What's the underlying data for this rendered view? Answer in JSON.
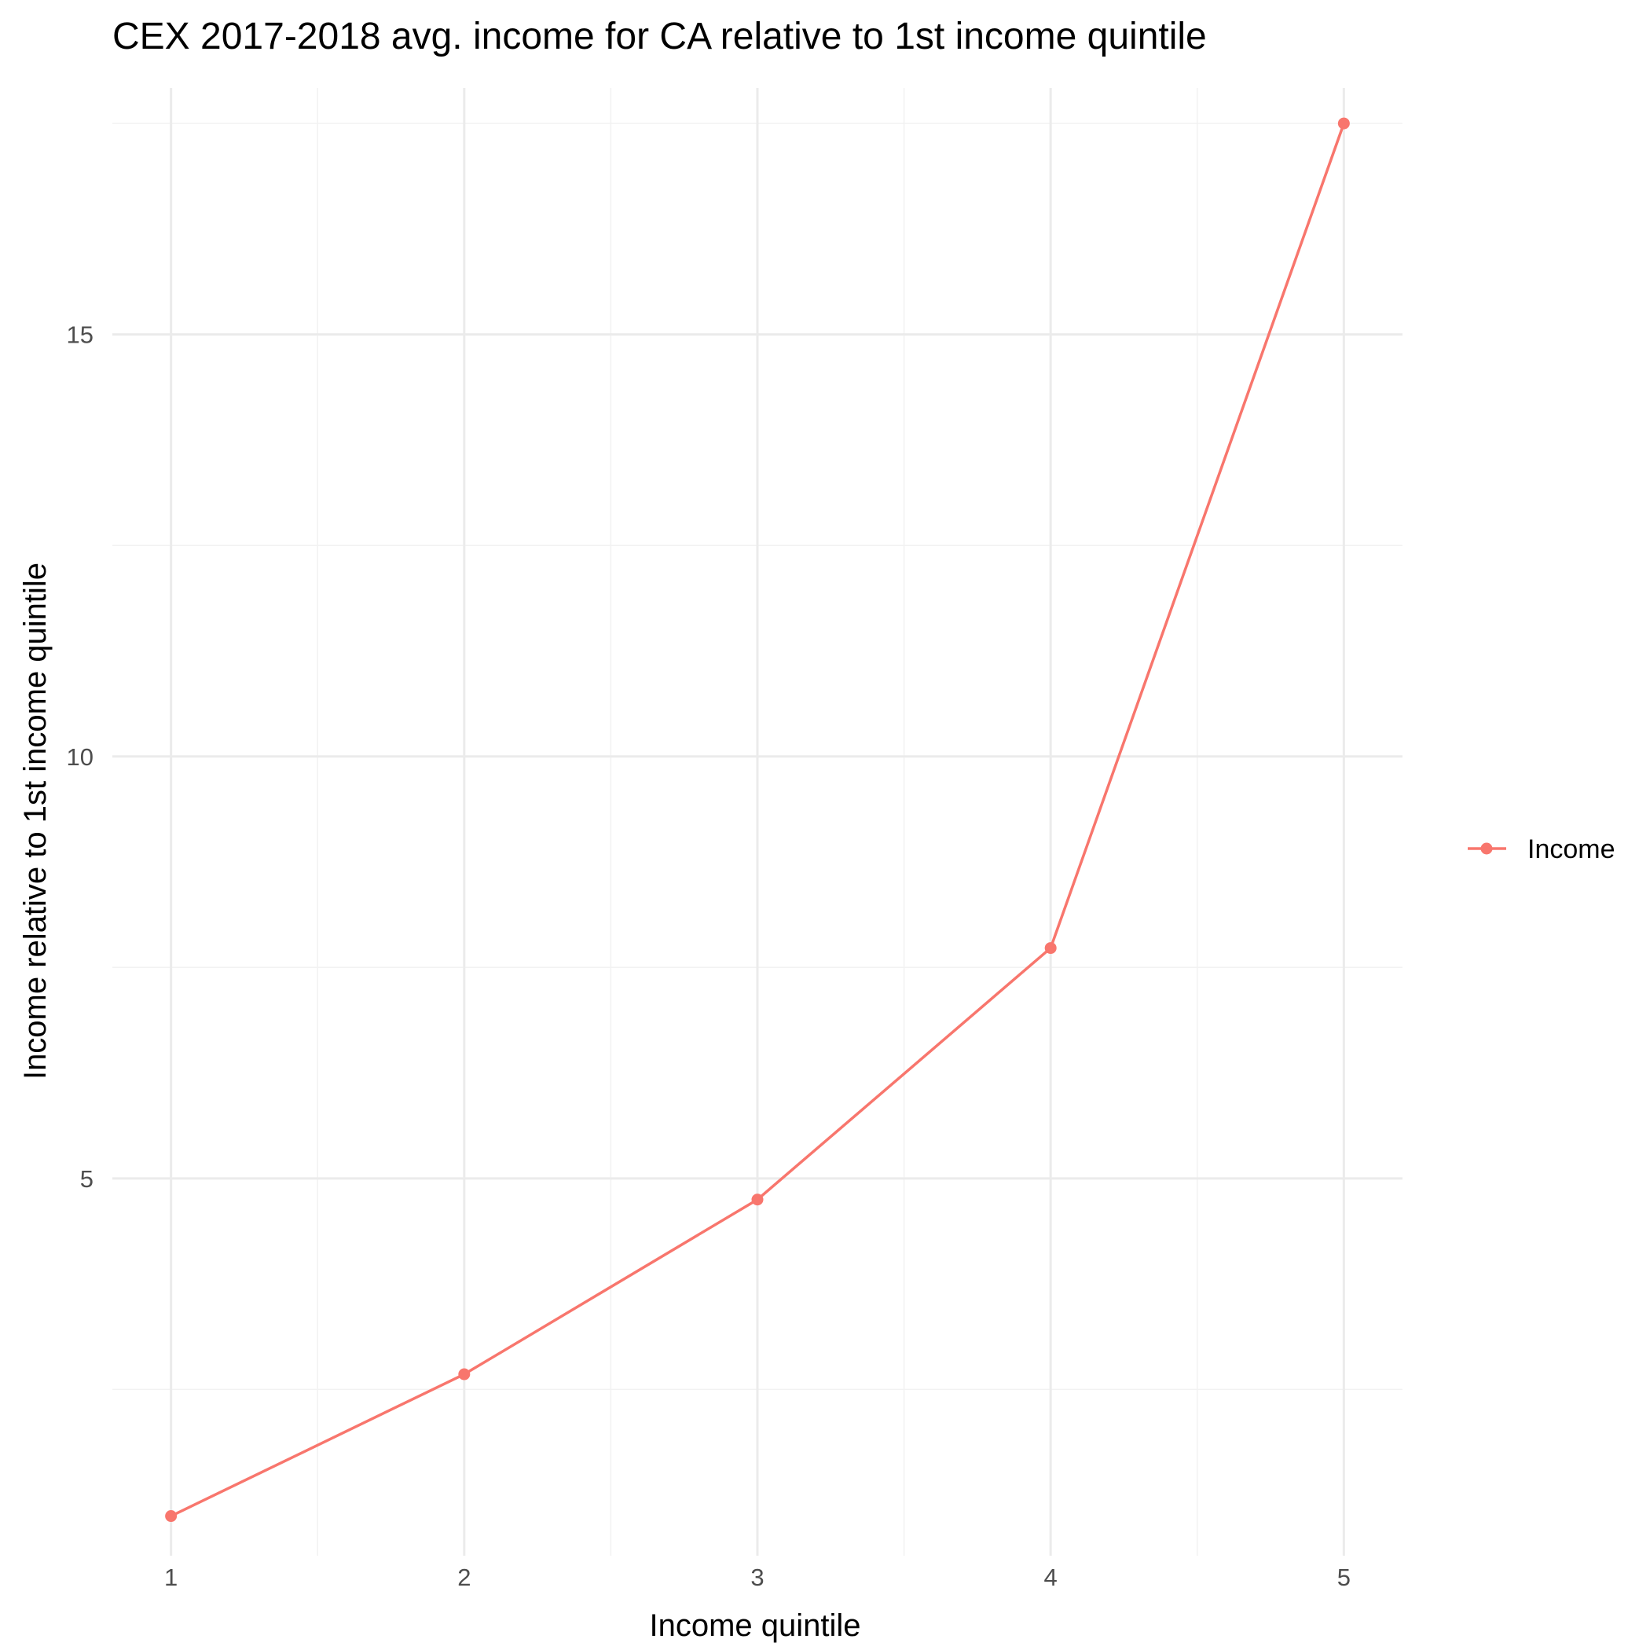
{
  "chart_data": {
    "type": "line",
    "title": "CEX 2017-2018 avg. income for CA relative to 1st income quintile",
    "xlabel": "Income quintile",
    "ylabel": "Income relative to 1st income quintile",
    "x": [
      1,
      2,
      3,
      4,
      5
    ],
    "x_ticks": [
      "1",
      "2",
      "3",
      "4",
      "5"
    ],
    "y_ticks": [
      "5",
      "10",
      "15"
    ],
    "xlim": [
      0.8,
      5.2
    ],
    "ylim": [
      0.53,
      17.92
    ],
    "grid": true,
    "legend_position": "right",
    "series": [
      {
        "name": "Income",
        "values": [
          1.0,
          2.68,
          4.75,
          7.73,
          17.5
        ],
        "color": "#f8766d"
      }
    ]
  }
}
